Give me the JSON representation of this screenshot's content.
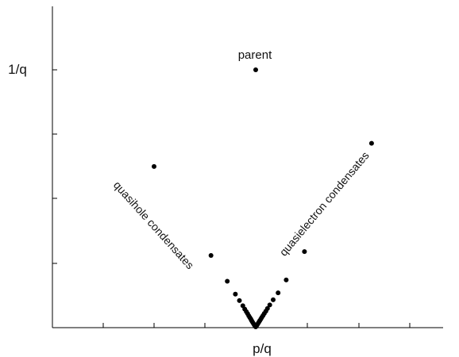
{
  "chart_data": {
    "type": "scatter",
    "title": "",
    "xlabel": "p/q",
    "ylabel": "1/q",
    "xlim": [
      -0.5,
      0.4
    ],
    "ylim": [
      0,
      1
    ],
    "grid": false,
    "series": [
      {
        "name": "",
        "points": [
          {
            "x": 0.0,
            "y": 1.0
          },
          {
            "x": -0.25,
            "y": 0.625
          },
          {
            "x": -0.11,
            "y": 0.28
          },
          {
            "x": -0.07,
            "y": 0.18
          },
          {
            "x": -0.05,
            "y": 0.13
          },
          {
            "x": -0.04,
            "y": 0.105
          },
          {
            "x": -0.0317,
            "y": 0.085
          },
          {
            "x": -0.027,
            "y": 0.072
          },
          {
            "x": -0.023,
            "y": 0.062
          },
          {
            "x": -0.02,
            "y": 0.054
          },
          {
            "x": -0.017,
            "y": 0.046
          },
          {
            "x": -0.0145,
            "y": 0.039
          },
          {
            "x": -0.012,
            "y": 0.033
          },
          {
            "x": -0.01,
            "y": 0.027
          },
          {
            "x": -0.008,
            "y": 0.022
          },
          {
            "x": -0.006,
            "y": 0.017
          },
          {
            "x": -0.004,
            "y": 0.012
          },
          {
            "x": -0.002,
            "y": 0.007
          },
          {
            "x": 0.0,
            "y": 0.003
          },
          {
            "x": 0.285,
            "y": 0.715
          },
          {
            "x": 0.12,
            "y": 0.295
          },
          {
            "x": 0.075,
            "y": 0.185
          },
          {
            "x": 0.055,
            "y": 0.135
          },
          {
            "x": 0.043,
            "y": 0.108
          },
          {
            "x": 0.0345,
            "y": 0.088
          },
          {
            "x": 0.029,
            "y": 0.074
          },
          {
            "x": 0.025,
            "y": 0.064
          },
          {
            "x": 0.021,
            "y": 0.055
          },
          {
            "x": 0.018,
            "y": 0.047
          },
          {
            "x": 0.015,
            "y": 0.04
          },
          {
            "x": 0.0125,
            "y": 0.033
          },
          {
            "x": 0.01,
            "y": 0.027
          },
          {
            "x": 0.008,
            "y": 0.022
          },
          {
            "x": 0.006,
            "y": 0.017
          },
          {
            "x": 0.004,
            "y": 0.012
          },
          {
            "x": 0.002,
            "y": 0.007
          }
        ]
      }
    ],
    "annotations": [
      {
        "text": "parent",
        "x": 0.0,
        "y": 1.0
      },
      {
        "text": "quasihole condensates",
        "x": -0.2,
        "y": 0.45
      },
      {
        "text": "quasielectron condensates",
        "x": 0.15,
        "y": 0.45
      }
    ],
    "ytick_labels": [
      "1/q"
    ]
  }
}
